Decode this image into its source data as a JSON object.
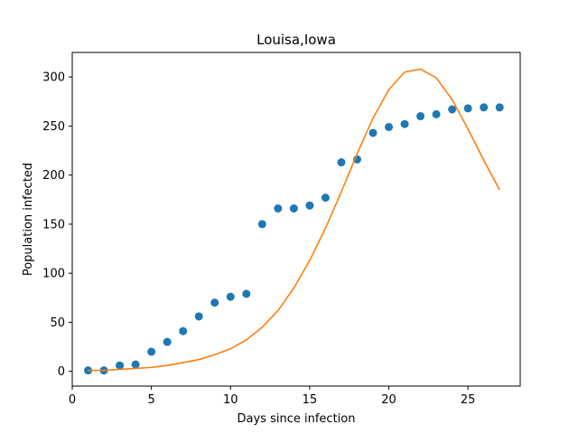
{
  "chart_data": {
    "type": "scatter",
    "title": "Louisa,Iowa",
    "xlabel": "Days since infection",
    "ylabel": "Population infected",
    "xlim": [
      0.0,
      28.3
    ],
    "ylim": [
      -15,
      325
    ],
    "xticks": [
      0,
      5,
      10,
      15,
      20,
      25
    ],
    "yticks": [
      0,
      50,
      100,
      150,
      200,
      250,
      300
    ],
    "grid": false,
    "series": [
      {
        "type": "scatter",
        "color": "#1f77b4",
        "x": [
          1,
          2,
          3,
          4,
          5,
          6,
          7,
          8,
          9,
          10,
          11,
          12,
          13,
          14,
          15,
          16,
          17,
          18,
          19,
          20,
          21,
          22,
          23,
          24,
          25,
          26,
          27
        ],
        "y": [
          1,
          1,
          6,
          7,
          20,
          30,
          41,
          56,
          70,
          76,
          79,
          150,
          166,
          166,
          169,
          177,
          213,
          216,
          243,
          249,
          252,
          260,
          262,
          267,
          268,
          269,
          269
        ]
      },
      {
        "type": "line",
        "color": "#ff7f0e",
        "x": [
          1,
          2,
          3,
          4,
          5,
          6,
          7,
          8,
          9,
          10,
          11,
          12,
          13,
          14,
          15,
          16,
          17,
          18,
          19,
          20,
          21,
          22,
          23,
          24,
          25,
          26,
          27
        ],
        "y": [
          1,
          1,
          2,
          3,
          4,
          6,
          9,
          12,
          17,
          23,
          32,
          45,
          62,
          85,
          113,
          146,
          183,
          222,
          258,
          287,
          305,
          308,
          299,
          277,
          247,
          215,
          185
        ]
      }
    ]
  }
}
